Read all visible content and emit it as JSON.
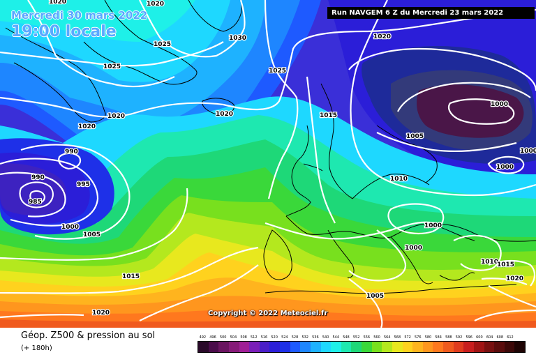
{
  "header": {
    "date": "Mercredi 30 mars 2022",
    "local_time": "19:00 locale",
    "run": "Run NAVGEM 6 Z du Mercredi 23 mars 2022"
  },
  "copyright": "Copyright © 2022 Meteociel.fr",
  "footer": {
    "title": "Géop. Z500 & pression au sol",
    "lead": "(+ 180h)"
  },
  "isobar_labels": {
    "1020a": "1020",
    "1020b": "1020",
    "1030": "1030",
    "1025a": "1025",
    "1025b": "1025",
    "1025c": "1025",
    "1020c": "1020",
    "1020d": "1020",
    "1020e": "1020",
    "1020f": "1020",
    "1015a": "1015",
    "1000a": "1000",
    "1005a": "1005",
    "1000b": "1000",
    "1010a": "1010",
    "990a": "990",
    "990b": "990",
    "995": "995",
    "985": "985",
    "1000c": "1000",
    "1005b": "1005",
    "1010b": "1010",
    "1000d": "1000",
    "1000e": "1000",
    "1010c": "1010",
    "1015b": "1015",
    "1020g": "1020",
    "1015c": "1015",
    "1005c": "1005",
    "1020h": "1020"
  },
  "legend": {
    "colors": [
      "#2a0a2a",
      "#4a0c4a",
      "#6a1460",
      "#861a78",
      "#a01e96",
      "#7a1eb8",
      "#4a1ec8",
      "#2b1ed8",
      "#1e30e8",
      "#1e5aff",
      "#1e86ff",
      "#1eb2ff",
      "#1ed8ff",
      "#1ef0e8",
      "#1ee8b0",
      "#1ed878",
      "#3ad83a",
      "#78e01e",
      "#b4e81e",
      "#e8e81e",
      "#ffd21e",
      "#ffb41e",
      "#ff961e",
      "#ff781e",
      "#f05a1e",
      "#e03c1e",
      "#c81e1e",
      "#a01414",
      "#781010",
      "#5a0c0c",
      "#3c0808",
      "#1e0404"
    ],
    "labels": [
      "492",
      "496",
      "500",
      "504",
      "508",
      "512",
      "516",
      "520",
      "524",
      "528",
      "532",
      "536",
      "540",
      "544",
      "548",
      "552",
      "556",
      "560",
      "564",
      "568",
      "572",
      "576",
      "580",
      "584",
      "588",
      "592",
      "596",
      "600",
      "604",
      "608",
      "612",
      ""
    ]
  }
}
